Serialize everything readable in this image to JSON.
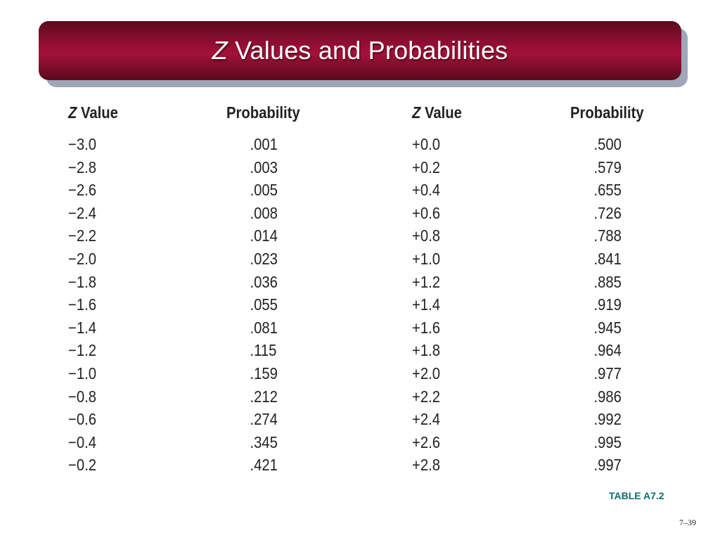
{
  "title": {
    "z_letter": "Z",
    "rest": " Values and Probabilities"
  },
  "table": {
    "headers": {
      "z_letter": "Z",
      "z_value_rest": " Value",
      "probability": "Probability"
    },
    "left": {
      "z_values": [
        "−3.0",
        "−2.8",
        "−2.6",
        "−2.4",
        "−2.2",
        "−2.0",
        "−1.8",
        "−1.6",
        "−1.4",
        "−1.2",
        "−1.0",
        "−0.8",
        "−0.6",
        "−0.4",
        "−0.2"
      ],
      "probabilities": [
        ".001",
        ".003",
        ".005",
        ".008",
        ".014",
        ".023",
        ".036",
        ".055",
        ".081",
        ".115",
        ".159",
        ".212",
        ".274",
        ".345",
        ".421"
      ]
    },
    "right": {
      "z_values": [
        "+0.0",
        "+0.2",
        "+0.4",
        "+0.6",
        "+0.8",
        "+1.0",
        "+1.2",
        "+1.4",
        "+1.6",
        "+1.8",
        "+2.0",
        "+2.2",
        "+2.4",
        "+2.6",
        "+2.8"
      ],
      "probabilities": [
        ".500",
        ".579",
        ".655",
        ".726",
        ".788",
        ".841",
        ".885",
        ".919",
        ".945",
        ".964",
        ".977",
        ".986",
        ".992",
        ".995",
        ".997"
      ]
    }
  },
  "caption": "TABLE A7.2",
  "page_number": "7–39",
  "colors": {
    "title_bar": "#9c0f35",
    "caption": "#0e6b6b"
  }
}
